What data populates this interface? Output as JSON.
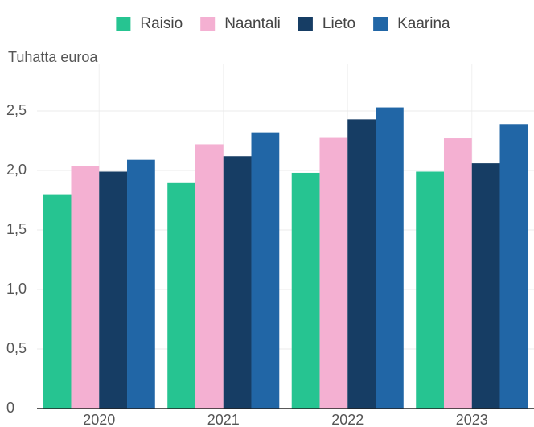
{
  "chart_data": {
    "type": "bar",
    "y_axis_label": "Tuhatta euroa",
    "categories": [
      "2020",
      "2021",
      "2022",
      "2023"
    ],
    "series": [
      {
        "name": "Raisio",
        "color": "#26c491",
        "values": [
          1.8,
          1.9,
          1.98,
          1.99
        ]
      },
      {
        "name": "Naantali",
        "color": "#f4b0d2",
        "values": [
          2.04,
          2.22,
          2.28,
          2.27
        ]
      },
      {
        "name": "Lieto",
        "color": "#163d64",
        "values": [
          1.99,
          2.12,
          2.43,
          2.06
        ]
      },
      {
        "name": "Kaarina",
        "color": "#2166a6",
        "values": [
          2.09,
          2.32,
          2.53,
          2.39
        ]
      }
    ],
    "ylim": [
      0,
      2.5
    ],
    "yticks": [
      0,
      {
        "value": 0.5,
        "label": "0,5"
      },
      {
        "value": 1.0,
        "label": "1,0"
      },
      {
        "value": 1.5,
        "label": "1,5"
      },
      {
        "value": 2.0,
        "label": "2,0"
      },
      {
        "value": 2.5,
        "label": "2,5"
      }
    ],
    "grid": true,
    "legend": "top"
  }
}
